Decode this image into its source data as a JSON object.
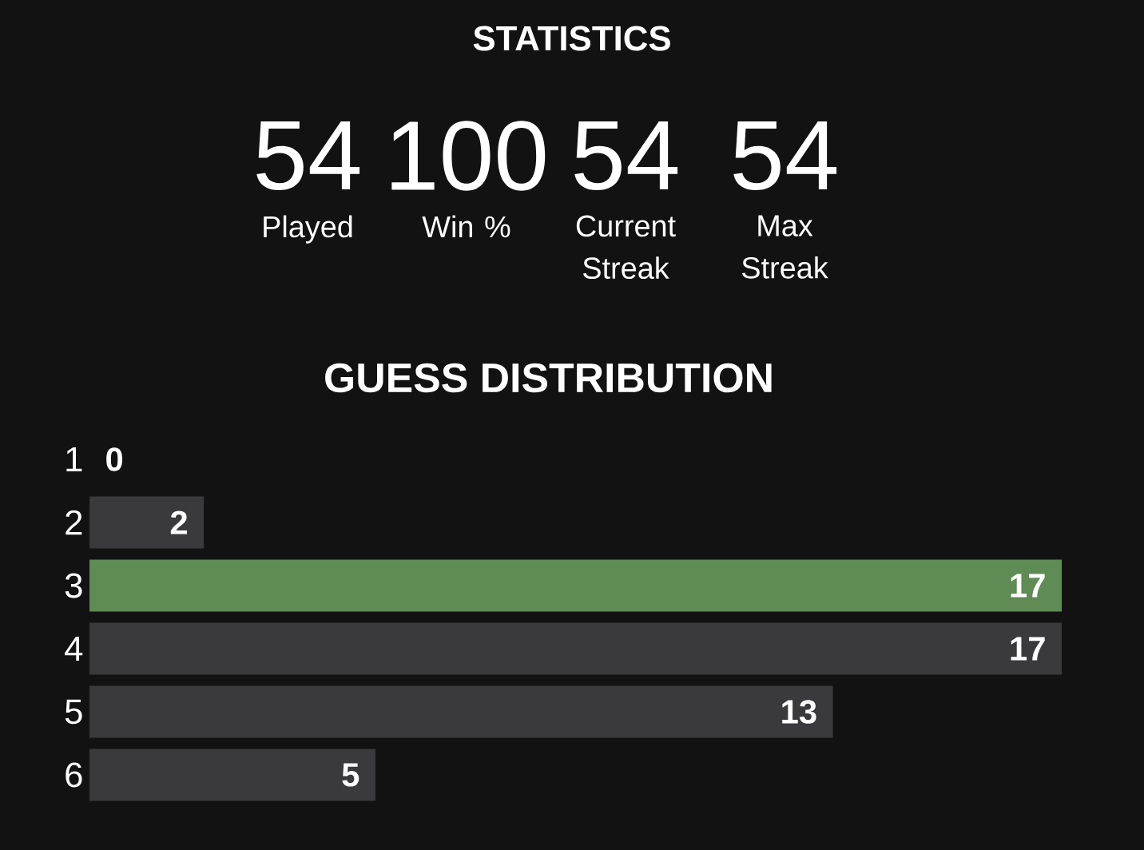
{
  "chart_data": [
    {
      "type": "other",
      "title": "STATISTICS",
      "categories": [
        "Played",
        "Win %",
        "Current Streak",
        "Max Streak"
      ],
      "values": [
        54,
        100,
        54,
        54
      ],
      "data_labels": true
    },
    {
      "type": "bar",
      "orientation": "horizontal",
      "title": "GUESS DISTRIBUTION",
      "categories": [
        "1",
        "2",
        "3",
        "4",
        "5",
        "6"
      ],
      "values": [
        0,
        2,
        17,
        17,
        13,
        5
      ],
      "colors": [
        "#3a3a3c",
        "#3a3a3c",
        "#5f8b55",
        "#3a3a3c",
        "#3a3a3c",
        "#3a3a3c"
      ],
      "data_labels": true
    }
  ]
}
